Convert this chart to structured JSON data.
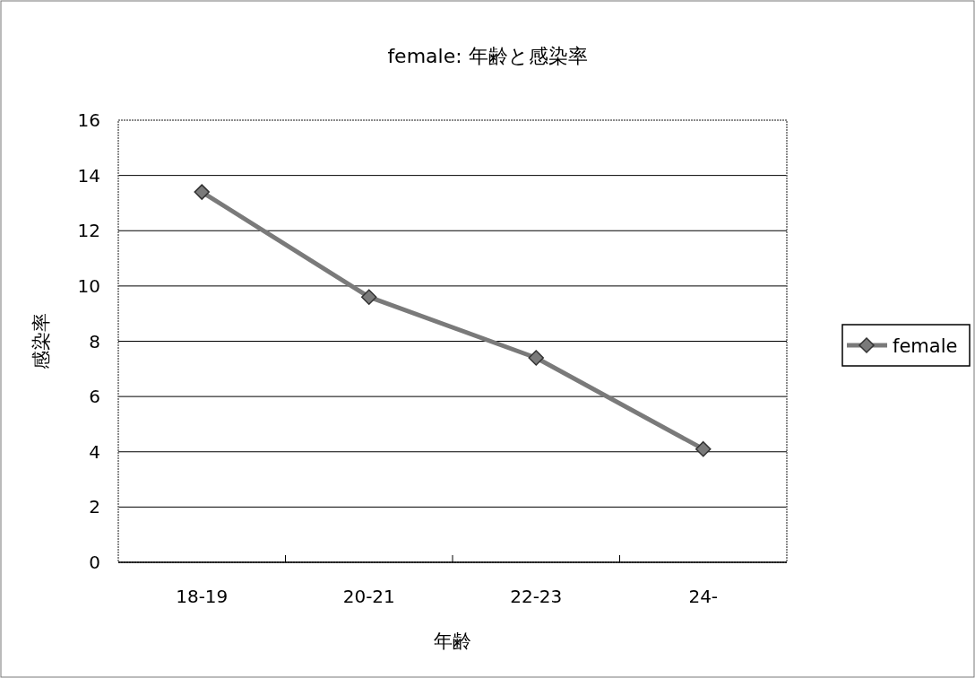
{
  "chart_data": {
    "type": "line",
    "title": "female: 年齢と感染率",
    "xlabel": "年齢",
    "ylabel": "感染率",
    "categories": [
      "18-19",
      "20-21",
      "22-23",
      "24-"
    ],
    "series": [
      {
        "name": "female",
        "color": "#7a7a7a",
        "values": [
          13.4,
          9.6,
          7.4,
          4.1
        ]
      }
    ],
    "ylim": [
      0,
      16
    ],
    "yticks": [
      0,
      2,
      4,
      6,
      8,
      10,
      12,
      14,
      16
    ],
    "grid": "y",
    "legend": "right",
    "marker": "diamond"
  }
}
